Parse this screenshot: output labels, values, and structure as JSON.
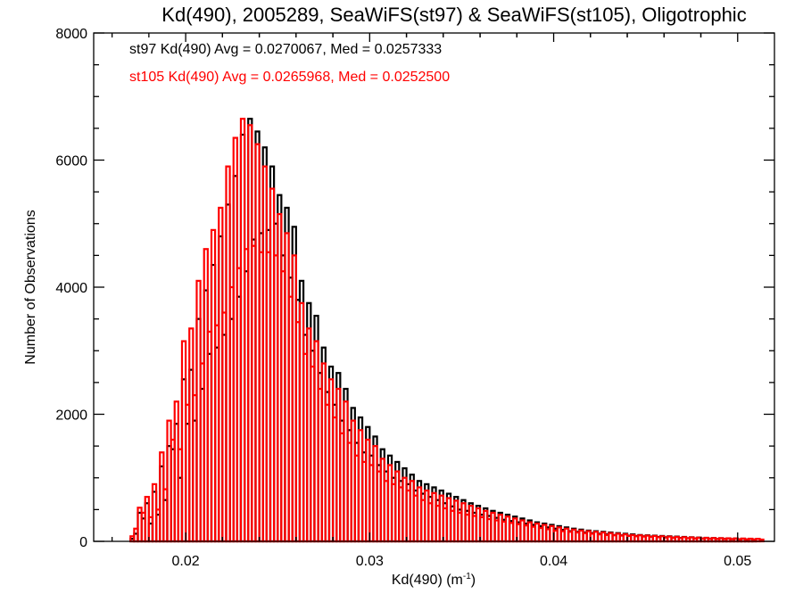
{
  "chart_data": {
    "type": "histogram",
    "title": "Kd(490), 2005289, SeaWiFS(st97) & SeaWiFS(st105), Oligotrophic",
    "xlabel_main": "Kd(490) (m",
    "xlabel_sup": "-1",
    "xlabel_end": ")",
    "ylabel": "Number of Observations",
    "xlim": [
      0.015,
      0.052
    ],
    "ylim": [
      0,
      8000
    ],
    "x_ticks": [
      0.02,
      0.03,
      0.04,
      0.05
    ],
    "x_tick_labels": [
      "0.02",
      "0.03",
      "0.04",
      "0.05"
    ],
    "y_ticks": [
      0,
      2000,
      4000,
      6000,
      8000
    ],
    "y_tick_labels": [
      "0",
      "2000",
      "4000",
      "6000",
      "8000"
    ],
    "bin_width": 0.0002,
    "bin_start": 0.015,
    "series": [
      {
        "name": "st97",
        "color": "#000000",
        "annotation": "st97 Kd(490) Avg = 0.0270067, Med = 0.0257333",
        "values": [
          0,
          0,
          0,
          0,
          0,
          0,
          0,
          0,
          0,
          0,
          40,
          120,
          450,
          360,
          600,
          280,
          780,
          420,
          1180,
          650,
          1500,
          1450,
          1850,
          1000,
          2550,
          1850,
          2700,
          1900,
          3500,
          2400,
          3950,
          2950,
          4350,
          3050,
          4800,
          3250,
          5300,
          3500,
          5750,
          3850,
          6400,
          4250,
          6650,
          4750,
          6450,
          4850,
          6200,
          4900,
          5900,
          5000,
          5450,
          4500,
          5250,
          4150,
          4950,
          3800,
          4100,
          3250,
          3750,
          3000,
          3550,
          2650,
          3050,
          2350,
          2750,
          2150,
          2650,
          1900,
          2400,
          1750,
          2100,
          1550,
          1950,
          1400,
          1800,
          1350,
          1650,
          1200,
          1450,
          1100,
          1350,
          1000,
          1250,
          950,
          1150,
          900,
          1050,
          800,
          950,
          750,
          900,
          700,
          850,
          650,
          800,
          600,
          750,
          550,
          700,
          500,
          650,
          480,
          600,
          450,
          560,
          420,
          520,
          400,
          480,
          370,
          450,
          340,
          420,
          320,
          390,
          300,
          360,
          280,
          330,
          260,
          300,
          240,
          280,
          220,
          260,
          200,
          240,
          180,
          220,
          160,
          200,
          150,
          185,
          140,
          170,
          130,
          160,
          120,
          150,
          110,
          140,
          100,
          130,
          95,
          120,
          90,
          110,
          85,
          100,
          80,
          95,
          75,
          90,
          70,
          85,
          65,
          80,
          60,
          75,
          55,
          70,
          50,
          65,
          48,
          60,
          45,
          56,
          42,
          52,
          40,
          50,
          38,
          48,
          35,
          45,
          33,
          42,
          30,
          40,
          28
        ]
      },
      {
        "name": "st105",
        "color": "#ff0000",
        "annotation": "st105 Kd(490) Avg = 0.0265968, Med = 0.0252500",
        "values": [
          0,
          0,
          0,
          0,
          0,
          0,
          0,
          0,
          0,
          0,
          80,
          200,
          530,
          450,
          700,
          380,
          900,
          500,
          1400,
          820,
          1900,
          1600,
          2200,
          1450,
          3150,
          2150,
          3350,
          2300,
          4100,
          2800,
          4600,
          3300,
          4900,
          3400,
          5250,
          3600,
          5900,
          4000,
          6350,
          4300,
          6650,
          4600,
          6550,
          4650,
          6250,
          4550,
          5900,
          4550,
          5550,
          4500,
          5150,
          4250,
          4850,
          3850,
          4500,
          3450,
          3750,
          2950,
          3350,
          2750,
          3150,
          2400,
          2800,
          2150,
          2550,
          1950,
          2400,
          1700,
          2200,
          1550,
          1900,
          1350,
          1750,
          1250,
          1600,
          1200,
          1500,
          1100,
          1300,
          950,
          1200,
          900,
          1100,
          850,
          1000,
          800,
          950,
          720,
          850,
          650,
          800,
          600,
          760,
          560,
          720,
          520,
          680,
          480,
          640,
          450,
          600,
          420,
          560,
          400,
          520,
          380,
          480,
          350,
          450,
          330,
          420,
          310,
          390,
          290,
          360,
          270,
          330,
          250,
          300,
          230,
          280,
          210,
          260,
          190,
          240,
          170,
          220,
          160,
          200,
          150,
          185,
          140,
          170,
          130,
          160,
          120,
          150,
          110,
          140,
          100,
          130,
          95,
          120,
          90,
          110,
          85,
          100,
          80,
          95,
          75,
          90,
          70,
          85,
          65,
          80,
          60,
          75,
          55,
          70,
          52,
          66,
          50,
          62,
          46,
          58,
          44,
          55,
          42,
          52,
          40,
          50,
          38,
          48,
          36,
          46,
          34,
          44,
          32,
          42,
          30,
          40,
          28
        ]
      }
    ]
  }
}
